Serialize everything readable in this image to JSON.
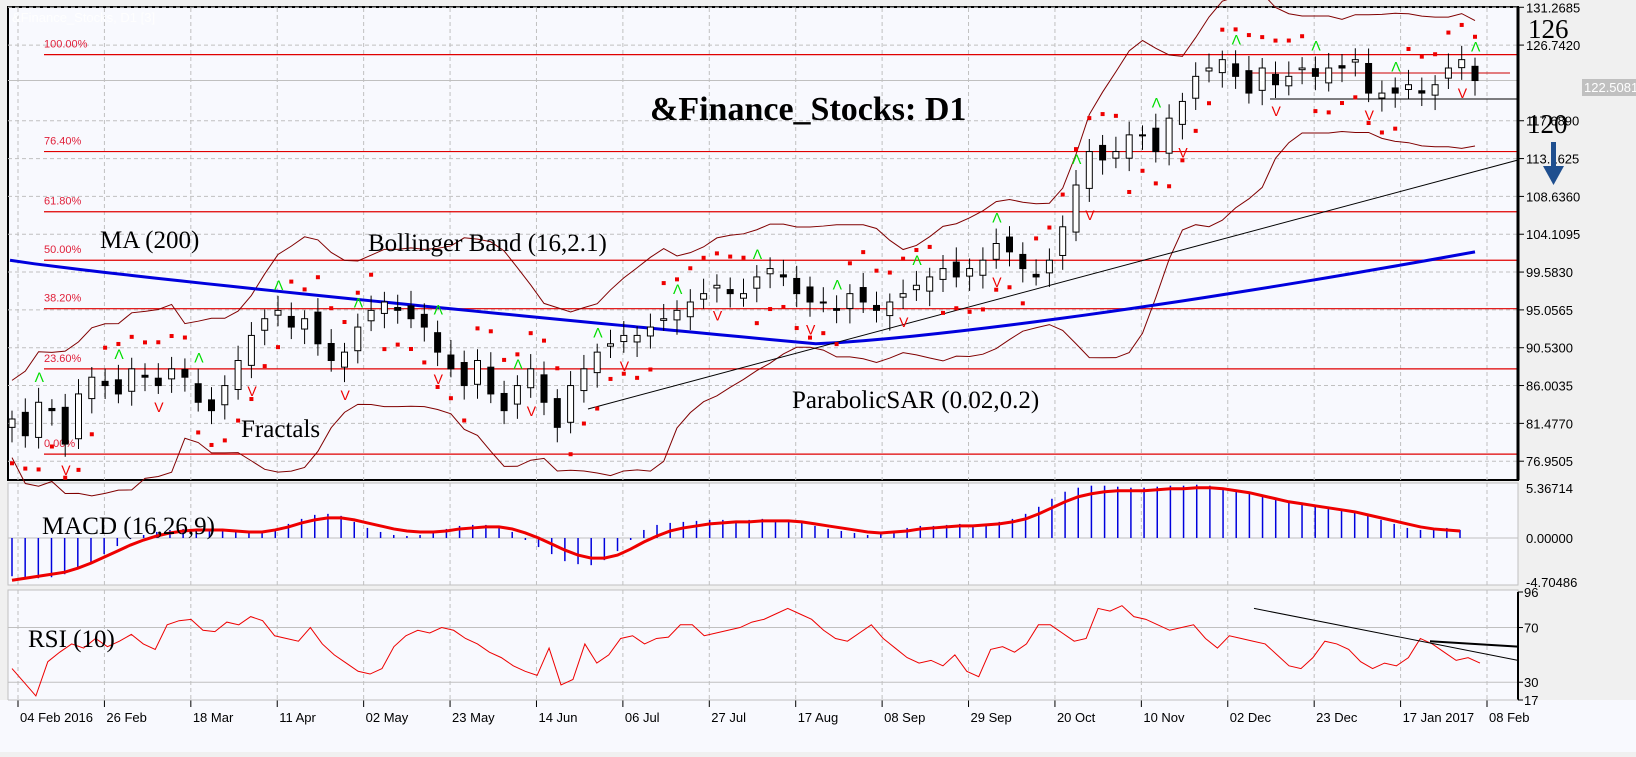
{
  "window": {
    "title": "&Finance_Stocks: D1",
    "faint_caption": "&Finance_Stocks, D1 [3]"
  },
  "colors": {
    "background": "#f8f9fe",
    "grid": "#c0c0c0",
    "fib_line": "#e00000",
    "fib_label": "#e0203a",
    "ma200": "#0000dd",
    "bollinger": "#800000",
    "sar": "#ee0000",
    "fractal_up": "#00dd00",
    "fractal_down": "#ee0000",
    "macd_hist": "#0000dd",
    "macd_signal": "#ee0000",
    "rsi": "#ee0000",
    "trendline": "#000000",
    "arrow": "#1f4f8f",
    "price_tag": "#c0c0c0"
  },
  "annotations": {
    "title": "&Finance_Stocks: D1",
    "ma": "MA (200)",
    "bollinger": "Bollinger Band (16,2.1)",
    "fractals": "Fractals",
    "sar": "ParabolicSAR (0.02,0.2)",
    "level_high": "126",
    "level_low": "120",
    "macd": "MACD (16,26,9)",
    "rsi": "RSI (10)"
  },
  "chart_data": [
    {
      "type": "candlestick",
      "title": "&Finance_Stocks: D1",
      "timeframe": "D1",
      "y_ticks": [
        "131.2685",
        "126.7420",
        "122.5081",
        "117.6890",
        "113.1625",
        "108.6360",
        "104.1095",
        "99.5830",
        "95.0565",
        "90.5300",
        "86.0035",
        "81.4770",
        "76.9505"
      ],
      "ylim": [
        74.7,
        131.3
      ],
      "current_price": "122.5081",
      "x_ticks": [
        "04 Feb 2016",
        "26 Feb",
        "18 Mar",
        "11 Apr",
        "02 May",
        "23 May",
        "14 Jun",
        "06 Jul",
        "27 Jul",
        "17 Aug",
        "08 Sep",
        "29 Sep",
        "20 Oct",
        "10 Nov",
        "02 Dec",
        "23 Dec",
        "17 Jan 2017",
        "08 Feb"
      ],
      "fibonacci_levels": [
        {
          "label": "100.00%",
          "price": 125.6
        },
        {
          "label": "76.40%",
          "price": 114.0
        },
        {
          "label": "61.80%",
          "price": 106.8
        },
        {
          "label": "50.00%",
          "price": 101.0
        },
        {
          "label": "38.20%",
          "price": 95.2
        },
        {
          "label": "23.60%",
          "price": 88.0
        },
        {
          "label": "0.00%",
          "price": 77.8
        }
      ],
      "ma200": {
        "label": "MA (200)",
        "start": 101.0,
        "min": 91.0,
        "end": 102.0
      },
      "bollinger": {
        "label": "Bollinger Band (16,2.1)"
      },
      "parabolic_sar": {
        "label": "ParabolicSAR (0.02,0.2)"
      },
      "fractals": {
        "label": "Fractals"
      },
      "close_series": [
        82,
        80,
        84,
        83,
        79,
        85,
        87,
        86,
        85,
        88,
        87,
        86,
        88,
        87,
        84,
        83,
        86,
        89,
        92,
        94,
        95,
        93,
        94,
        91,
        89,
        90,
        93,
        95,
        96,
        95,
        94,
        93,
        90,
        88,
        86,
        89,
        85,
        83,
        86,
        88,
        84,
        81,
        86,
        88,
        90,
        91,
        92,
        92,
        93,
        94,
        95,
        96,
        97,
        98,
        97,
        97,
        99,
        100,
        99,
        97,
        96,
        96,
        95,
        97,
        96,
        95,
        96,
        97,
        98,
        99,
        100,
        99,
        100,
        101,
        103,
        102,
        100,
        99,
        101,
        105,
        110,
        114,
        113,
        114,
        116,
        116,
        114,
        118,
        120,
        123,
        124,
        125,
        123,
        121,
        124,
        122,
        123,
        124,
        123,
        124,
        124,
        125,
        121,
        121,
        121,
        122,
        121,
        122,
        124,
        125,
        122.5
      ],
      "resistance": 126,
      "support": 120,
      "arrow": "down"
    },
    {
      "type": "bar+line",
      "title": "MACD (16,26,9)",
      "y_ticks": [
        "5.36714",
        "0.00000",
        "-4.70486"
      ],
      "ylim": [
        -4.70486,
        5.36714
      ],
      "histogram": [
        -3.8,
        -3.9,
        -4.0,
        -3.9,
        -3.6,
        -3.0,
        -2.4,
        -1.6,
        -0.8,
        -0.1,
        0.3,
        0.6,
        0.8,
        0.9,
        0.9,
        0.9,
        0.8,
        0.6,
        0.5,
        0.6,
        0.9,
        1.4,
        1.9,
        2.3,
        2.4,
        2.2,
        1.6,
        1.0,
        0.6,
        0.3,
        0.2,
        0.3,
        0.5,
        0.9,
        1.2,
        1.3,
        1.3,
        1.2,
        0.6,
        -0.2,
        -0.9,
        -1.6,
        -2.3,
        -2.6,
        -2.7,
        -2.2,
        -1.3,
        -0.2,
        0.8,
        1.3,
        1.5,
        1.6,
        1.7,
        1.8,
        1.8,
        1.7,
        1.8,
        1.9,
        1.8,
        1.7,
        1.5,
        1.2,
        0.9,
        0.7,
        0.5,
        0.3,
        0.4,
        0.7,
        1.0,
        1.2,
        1.2,
        1.3,
        1.4,
        1.3,
        1.4,
        1.6,
        1.9,
        2.4,
        3.1,
        3.9,
        4.6,
        5.0,
        5.2,
        5.2,
        5.1,
        5.0,
        5.0,
        5.1,
        5.2,
        5.2,
        5.3,
        5.2,
        5.0,
        4.8,
        4.5,
        4.2,
        3.9,
        3.6,
        3.3,
        3.2,
        3.0,
        2.8,
        2.6,
        2.2,
        1.8,
        1.4,
        1.0,
        0.8,
        0.9,
        1.0,
        0.8
      ],
      "signal": [
        -4.2,
        -4.0,
        -3.8,
        -3.6,
        -3.4,
        -3.0,
        -2.5,
        -1.9,
        -1.3,
        -0.7,
        -0.2,
        0.2,
        0.5,
        0.7,
        0.8,
        0.8,
        0.8,
        0.7,
        0.6,
        0.6,
        0.8,
        1.1,
        1.5,
        1.8,
        2.0,
        2.0,
        1.8,
        1.5,
        1.2,
        0.9,
        0.7,
        0.6,
        0.6,
        0.7,
        0.9,
        1.0,
        1.1,
        1.1,
        0.9,
        0.5,
        0.0,
        -0.6,
        -1.2,
        -1.7,
        -2.0,
        -2.0,
        -1.7,
        -1.1,
        -0.4,
        0.2,
        0.7,
        1.0,
        1.2,
        1.4,
        1.5,
        1.6,
        1.6,
        1.7,
        1.7,
        1.7,
        1.6,
        1.4,
        1.2,
        1.0,
        0.8,
        0.6,
        0.5,
        0.6,
        0.7,
        0.9,
        1.0,
        1.1,
        1.2,
        1.2,
        1.3,
        1.4,
        1.6,
        1.9,
        2.4,
        3.0,
        3.6,
        4.1,
        4.4,
        4.6,
        4.7,
        4.7,
        4.7,
        4.8,
        4.9,
        4.9,
        5.0,
        5.0,
        4.9,
        4.7,
        4.5,
        4.2,
        3.9,
        3.6,
        3.4,
        3.2,
        3.0,
        2.8,
        2.6,
        2.3,
        2.0,
        1.7,
        1.4,
        1.1,
        0.9,
        0.8,
        0.7
      ]
    },
    {
      "type": "line",
      "title": "RSI (10)",
      "y_ticks": [
        "96",
        "70",
        "30",
        "17"
      ],
      "ylim": [
        17,
        96
      ],
      "levels": [
        70,
        30
      ],
      "values": [
        40,
        30,
        20,
        45,
        52,
        58,
        55,
        62,
        56,
        60,
        65,
        58,
        54,
        72,
        75,
        76,
        68,
        67,
        74,
        72,
        78,
        75,
        64,
        62,
        60,
        70,
        58,
        50,
        44,
        38,
        36,
        40,
        56,
        64,
        68,
        66,
        70,
        68,
        62,
        58,
        52,
        48,
        42,
        38,
        35,
        55,
        28,
        32,
        58,
        44,
        50,
        62,
        64,
        58,
        62,
        63,
        72,
        72,
        64,
        66,
        68,
        70,
        74,
        76,
        80,
        84,
        80,
        76,
        68,
        62,
        60,
        66,
        72,
        62,
        55,
        48,
        44,
        46,
        42,
        50,
        38,
        34,
        54,
        56,
        52,
        58,
        72,
        72,
        66,
        60,
        62,
        84,
        82,
        86,
        78,
        76,
        72,
        68,
        70,
        72,
        62,
        55,
        64,
        62,
        60,
        58,
        50,
        42,
        40,
        48,
        60,
        58,
        54,
        45,
        40,
        44,
        42,
        48,
        62,
        58,
        52,
        46,
        48,
        44
      ]
    }
  ]
}
